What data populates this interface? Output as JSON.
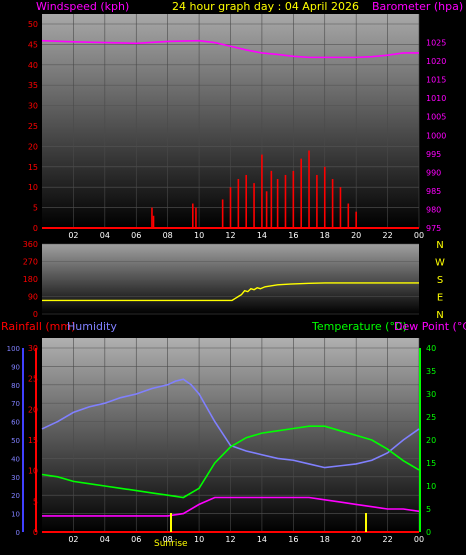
{
  "header": {
    "left_label": "Windspeed (kph)",
    "center_label": "24 hour graph day : 04 April 2026",
    "right_label": "Barometer (hpa)"
  },
  "bottom_header": {
    "rainfall_label": "Rainfall (mm)",
    "humidity_label": "Humidity",
    "temperature_label": "Temperature (°C)",
    "dewpoint_label": "Dew Point (°C)"
  },
  "compass_labels": [
    "N",
    "W",
    "S",
    "E",
    "N"
  ],
  "sunrise_label": "Sunrise",
  "colors": {
    "wind": "#ff0000",
    "gust": "#00ff00",
    "barometer": "#ff00ff",
    "direction": "#ffff00",
    "humidity": "#8080ff",
    "temperature": "#00ff00",
    "dewpoint": "#ff00ff",
    "rainfall": "#ff0000"
  },
  "chart_data": [
    {
      "type": "line",
      "title": "24 hour graph day : 04 April 2026",
      "x_tick_labels": [
        "02",
        "04",
        "06",
        "08",
        "10",
        "12",
        "14",
        "16",
        "18",
        "20",
        "22",
        "00"
      ],
      "y_left": {
        "label": "Windspeed (kph)",
        "range": [
          0,
          50
        ],
        "ticks": [
          0,
          5,
          10,
          15,
          20,
          25,
          30,
          35,
          40,
          45,
          50
        ]
      },
      "y_right": {
        "label": "Barometer (hpa)",
        "range": [
          975,
          1030
        ],
        "ticks": [
          975,
          980,
          985,
          990,
          995,
          1000,
          1005,
          1010,
          1015,
          1020,
          1025
        ]
      },
      "series": [
        {
          "name": "Barometer (hpa)",
          "axis": "right",
          "x": [
            0,
            2,
            4,
            6,
            8,
            10,
            11,
            12,
            13,
            14,
            15,
            16,
            17,
            18,
            19,
            20,
            21,
            22,
            23,
            24
          ],
          "y": [
            1025.5,
            1025.2,
            1025,
            1024.8,
            1025.3,
            1025.5,
            1025,
            1024,
            1023,
            1022.2,
            1021.8,
            1021.3,
            1021,
            1021,
            1021,
            1021,
            1021.2,
            1021.6,
            1022.2,
            1022.2
          ]
        },
        {
          "name": "Windspeed (kph)",
          "axis": "left",
          "x": [
            7,
            7.1,
            9.6,
            9.8,
            11.5,
            12,
            12.5,
            13,
            13.5,
            14,
            14.3,
            14.6,
            15,
            15.5,
            16,
            16.5,
            17,
            17.5,
            18,
            18.5,
            19,
            19.5,
            20
          ],
          "y": [
            5,
            3,
            6,
            5,
            7,
            10,
            12,
            13,
            11,
            18,
            9,
            14,
            12,
            13,
            14,
            17,
            19,
            13,
            15,
            12,
            10,
            6,
            4
          ]
        }
      ]
    },
    {
      "type": "line",
      "title": "Wind direction",
      "y_left": {
        "range": [
          0,
          360
        ],
        "ticks": [
          0,
          90,
          180,
          270,
          360
        ]
      },
      "series": [
        {
          "name": "Wind direction",
          "x": [
            0,
            12.1,
            12.3,
            12.5,
            12.7,
            12.9,
            13.1,
            13.3,
            13.5,
            13.7,
            13.9,
            14.2,
            14.6,
            15.0,
            15.4,
            15.8,
            16.4,
            17,
            18,
            20,
            22,
            24
          ],
          "y": [
            70,
            70,
            80,
            90,
            100,
            120,
            115,
            130,
            125,
            135,
            130,
            140,
            145,
            150,
            152,
            154,
            156,
            158,
            160,
            160,
            160,
            160
          ]
        }
      ]
    },
    {
      "type": "line",
      "title": "",
      "x_tick_labels": [
        "02",
        "04",
        "06",
        "08",
        "10",
        "12",
        "14",
        "16",
        "18",
        "20",
        "22",
        "00"
      ],
      "y_humidity": {
        "label": "Humidity",
        "range": [
          0,
          100
        ],
        "ticks": [
          0,
          10,
          20,
          30,
          40,
          50,
          60,
          70,
          80,
          90,
          100
        ]
      },
      "y_rainfall": {
        "label": "Rainfall (mm)",
        "range": [
          0,
          30
        ],
        "ticks": [
          0,
          5,
          10,
          15,
          20,
          25,
          30
        ]
      },
      "y_right": {
        "label": "Temperature (°C)",
        "range": [
          0,
          40
        ],
        "ticks": [
          0,
          5,
          10,
          15,
          20,
          25,
          30,
          35,
          40
        ]
      },
      "series": [
        {
          "name": "Humidity",
          "axis": "humidity",
          "x": [
            0,
            1,
            2,
            3,
            4,
            5,
            6,
            7,
            8,
            8.5,
            9,
            9.5,
            10,
            11,
            12,
            13,
            14,
            15,
            16,
            17,
            18,
            19,
            20,
            21,
            22,
            23,
            24
          ],
          "y": [
            56,
            60,
            65,
            68,
            70,
            73,
            75,
            78,
            80,
            82,
            83,
            80,
            75,
            60,
            47,
            44,
            42,
            40,
            39,
            37,
            35,
            36,
            37,
            39,
            43,
            50,
            56
          ]
        },
        {
          "name": "Temperature (°C)",
          "axis": "right",
          "x": [
            0,
            1,
            2,
            3,
            4,
            5,
            6,
            7,
            8,
            9,
            10,
            11,
            12,
            13,
            14,
            15,
            16,
            17,
            18,
            19,
            20,
            21,
            22,
            23,
            24
          ],
          "y": [
            12.5,
            12,
            11,
            10.5,
            10,
            9.5,
            9,
            8.5,
            8,
            7.5,
            9.5,
            15,
            18.5,
            20.5,
            21.5,
            22,
            22.5,
            23,
            23,
            22,
            21,
            20,
            18,
            15.5,
            13.5
          ]
        },
        {
          "name": "Dew Point (°C)",
          "axis": "right",
          "x": [
            0,
            1,
            2,
            3,
            4,
            5,
            6,
            7,
            8,
            9,
            10,
            11,
            12,
            13,
            14,
            15,
            16,
            17,
            18,
            19,
            20,
            21,
            22,
            23,
            24
          ],
          "y": [
            3.5,
            3.5,
            3.5,
            3.5,
            3.5,
            3.5,
            3.5,
            3.5,
            3.5,
            4,
            6,
            7.5,
            7.5,
            7.5,
            7.5,
            7.5,
            7.5,
            7.5,
            7,
            6.5,
            6,
            5.5,
            5,
            5,
            4.5
          ]
        }
      ]
    }
  ]
}
